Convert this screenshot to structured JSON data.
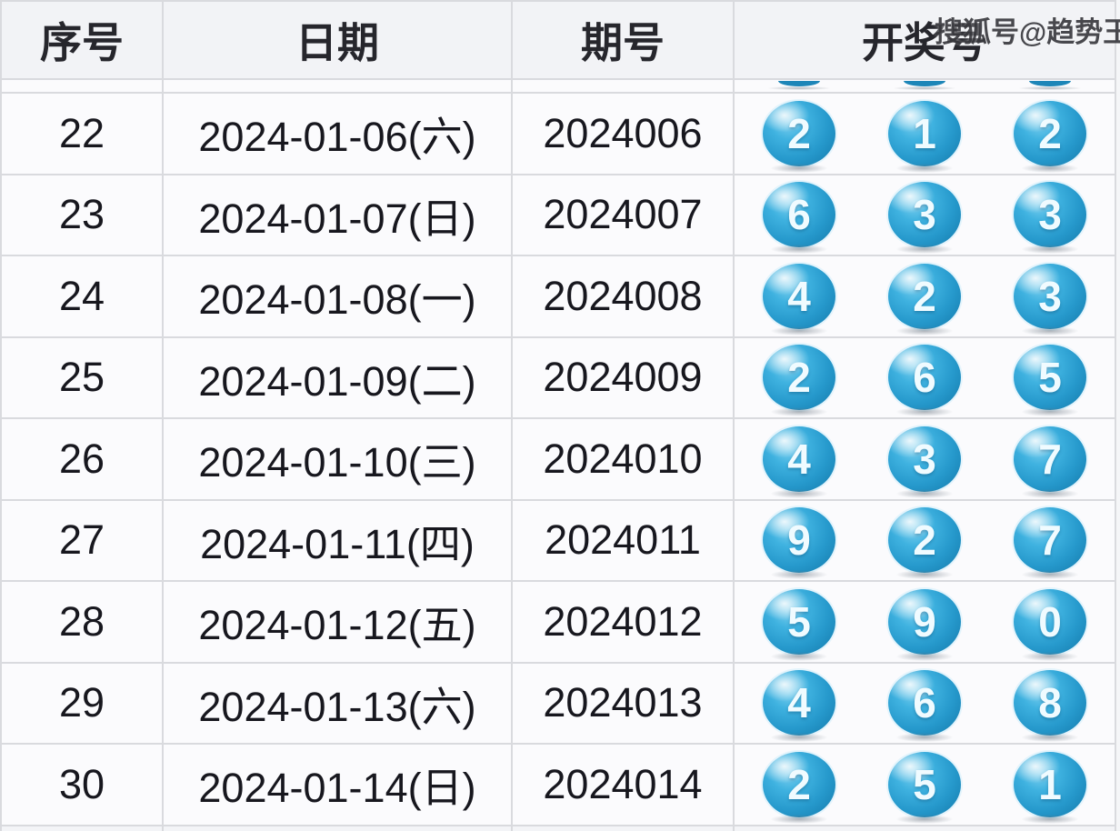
{
  "watermark": {
    "text": "搜狐号@趋势王"
  },
  "table": {
    "headers": {
      "seq": "序号",
      "date": "日期",
      "period": "期号",
      "numbers": "开奖号"
    },
    "rows": [
      {
        "seq": "22",
        "date": "2024-01-06(六)",
        "period": "2024006",
        "balls": [
          "2",
          "1",
          "2"
        ]
      },
      {
        "seq": "23",
        "date": "2024-01-07(日)",
        "period": "2024007",
        "balls": [
          "6",
          "3",
          "3"
        ]
      },
      {
        "seq": "24",
        "date": "2024-01-08(一)",
        "period": "2024008",
        "balls": [
          "4",
          "2",
          "3"
        ]
      },
      {
        "seq": "25",
        "date": "2024-01-09(二)",
        "period": "2024009",
        "balls": [
          "2",
          "6",
          "5"
        ]
      },
      {
        "seq": "26",
        "date": "2024-01-10(三)",
        "period": "2024010",
        "balls": [
          "4",
          "3",
          "7"
        ]
      },
      {
        "seq": "27",
        "date": "2024-01-11(四)",
        "period": "2024011",
        "balls": [
          "9",
          "2",
          "7"
        ]
      },
      {
        "seq": "28",
        "date": "2024-01-12(五)",
        "period": "2024012",
        "balls": [
          "5",
          "9",
          "0"
        ]
      },
      {
        "seq": "29",
        "date": "2024-01-13(六)",
        "period": "2024013",
        "balls": [
          "4",
          "6",
          "8"
        ]
      },
      {
        "seq": "30",
        "date": "2024-01-14(日)",
        "period": "2024014",
        "balls": [
          "2",
          "5",
          "1"
        ]
      }
    ]
  },
  "colors": {
    "ball_main": "#2da4d8",
    "ball_dark": "#1b86b8",
    "ball_highlight": "#cdeefc",
    "border": "#d9dade",
    "header_bg": "#f2f3f6",
    "row_bg": "#fbfbfd",
    "text": "#17171e",
    "watermark_text": "#3a3a3f"
  }
}
